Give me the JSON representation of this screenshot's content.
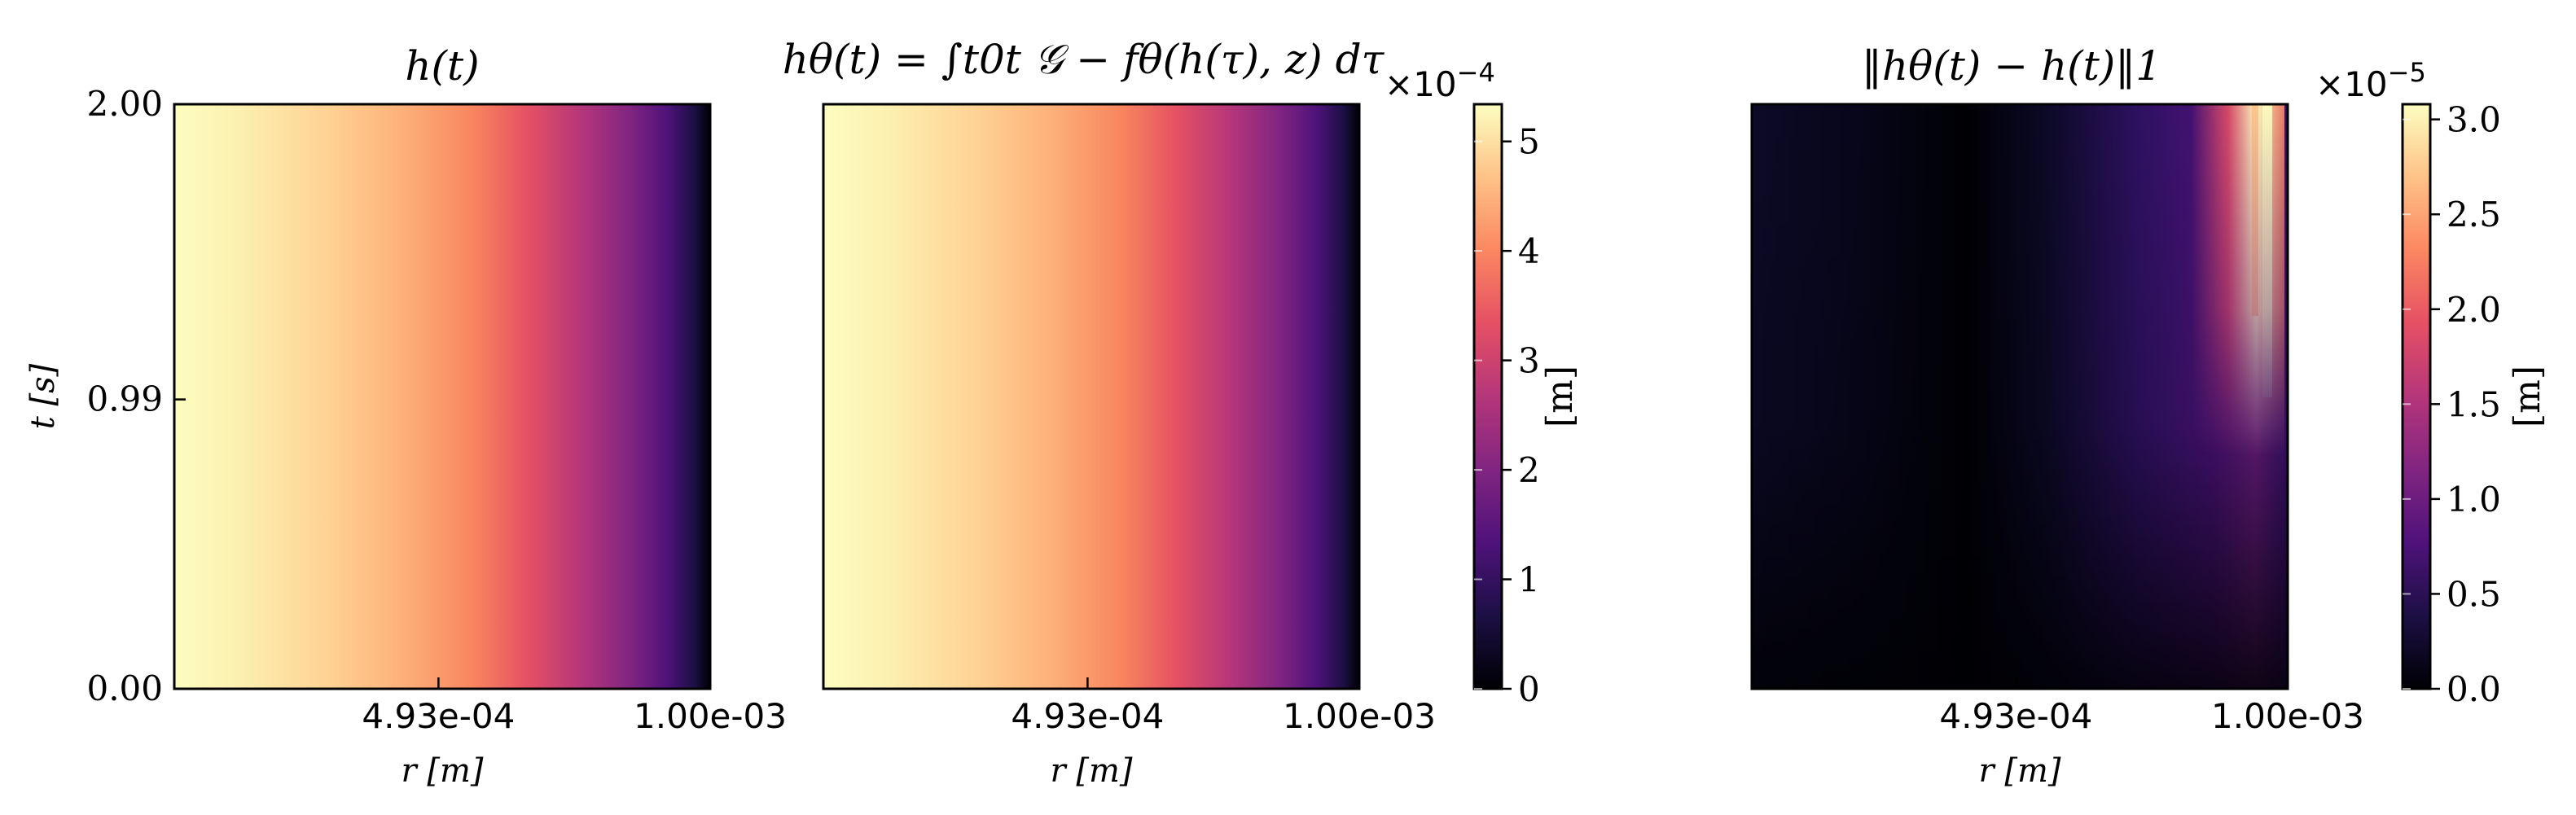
{
  "chart_data": [
    {
      "type": "heatmap",
      "title": "h(t)",
      "xlabel": "r [m]",
      "ylabel": "t [s]",
      "x_ticks": [
        "4.93e-04",
        "1.00e-03"
      ],
      "y_ticks": [
        "0.00",
        "0.99",
        "2.00"
      ],
      "xlim": [
        0,
        0.001
      ],
      "ylim": [
        0.0,
        2.0
      ],
      "colormap": "magma",
      "clim": [
        0,
        0.000534
      ]
    },
    {
      "type": "heatmap",
      "title": "hθ(t) = ∫t0t 𝒢 − fθ(h(τ), z) dτ",
      "xlabel": "r [m]",
      "x_ticks": [
        "4.93e-04",
        "1.00e-03"
      ],
      "xlim": [
        0,
        0.001
      ],
      "ylim": [
        0.0,
        2.0
      ],
      "colormap": "magma",
      "colorbar": {
        "label": "[m]",
        "multiplier": "×10",
        "exponent": "−4",
        "ticks": [
          "0",
          "1",
          "2",
          "3",
          "4",
          "5"
        ],
        "tick_values": [
          0,
          1,
          2,
          3,
          4,
          5
        ],
        "range": [
          0,
          5.34
        ]
      }
    },
    {
      "type": "heatmap",
      "title": "‖hθ(t) − h(t)‖1",
      "xlabel": "r [m]",
      "x_ticks": [
        "4.93e-04",
        "1.00e-03"
      ],
      "xlim": [
        0,
        0.001
      ],
      "ylim": [
        0.0,
        2.0
      ],
      "colormap": "magma",
      "colorbar": {
        "label": "[m]",
        "multiplier": "×10",
        "exponent": "−5",
        "ticks": [
          "0.0",
          "0.5",
          "1.0",
          "1.5",
          "2.0",
          "2.5",
          "3.0"
        ],
        "tick_values": [
          0.0,
          0.5,
          1.0,
          1.5,
          2.0,
          2.5,
          3.0
        ],
        "range": [
          0,
          3.08
        ]
      }
    }
  ],
  "colors": {
    "magma": [
      "#000004",
      "#1c1044",
      "#4f127b",
      "#812581",
      "#b5367a",
      "#e55064",
      "#fb8761",
      "#fec287",
      "#fcfdbf"
    ]
  }
}
